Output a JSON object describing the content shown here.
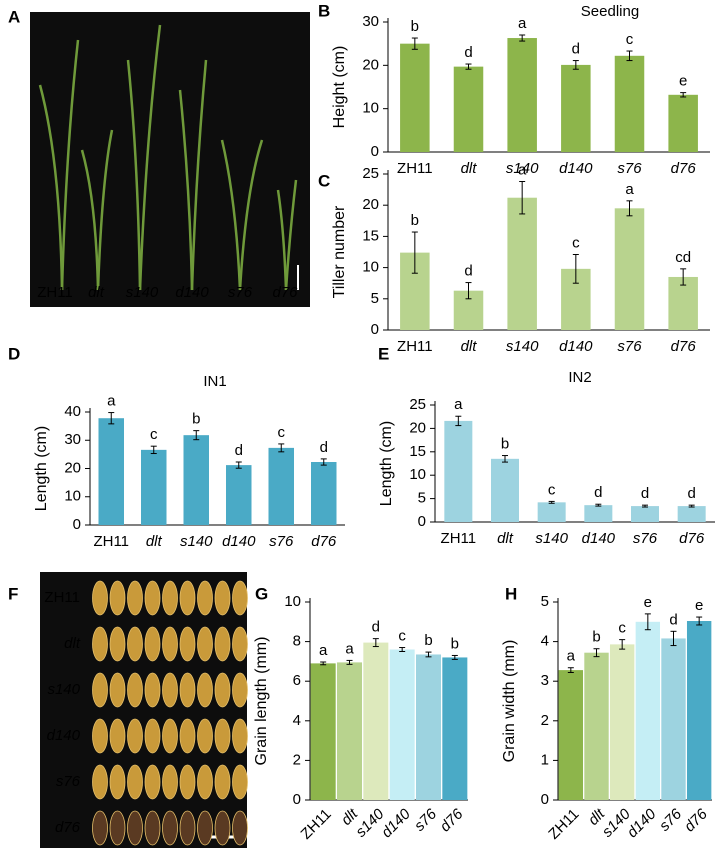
{
  "chart_data": [
    {
      "type": "bar",
      "panel": "B",
      "title": "Seedling",
      "y_label": "Height (cm)",
      "categories": [
        "ZH11",
        "dlt",
        "s140",
        "d140",
        "s76",
        "d76"
      ],
      "values": [
        25,
        19.7,
        26.3,
        20.1,
        22.2,
        13.2
      ],
      "errors": [
        1.3,
        0.6,
        0.7,
        1.0,
        1.1,
        0.5
      ],
      "annotations": [
        "b",
        "d",
        "a",
        "d",
        "c",
        "e"
      ],
      "color": "#8db54b",
      "ylim": [
        0,
        30
      ],
      "yticks": [
        0,
        10,
        20,
        30
      ]
    },
    {
      "type": "bar",
      "panel": "C",
      "y_label": "Tiller number",
      "categories": [
        "ZH11",
        "dlt",
        "s140",
        "d140",
        "s76",
        "d76"
      ],
      "values": [
        12.4,
        6.3,
        21.2,
        9.8,
        19.5,
        8.5
      ],
      "errors": [
        3.3,
        1.3,
        2.6,
        2.3,
        1.2,
        1.3
      ],
      "annotations": [
        "b",
        "d",
        "a",
        "c",
        "a",
        "cd"
      ],
      "color": "#b8d38e",
      "ylim": [
        0,
        25
      ],
      "yticks": [
        0,
        5,
        10,
        15,
        20,
        25
      ]
    },
    {
      "type": "bar",
      "panel": "D",
      "title": "IN1",
      "y_label": "Length (cm)",
      "categories": [
        "ZH11",
        "dlt",
        "s140",
        "d140",
        "s76",
        "d76"
      ],
      "values": [
        37.8,
        26.6,
        31.8,
        21.2,
        27.3,
        22.3
      ],
      "errors": [
        2.0,
        1.3,
        1.6,
        1.1,
        1.4,
        1.1
      ],
      "annotations": [
        "a",
        "c",
        "b",
        "d",
        "c",
        "d"
      ],
      "color": "#4aaac6",
      "ylim": [
        0,
        40
      ],
      "yticks": [
        0,
        10,
        20,
        30,
        40
      ]
    },
    {
      "type": "bar",
      "panel": "E",
      "title": "IN2",
      "y_label": "Length (cm)",
      "categories": [
        "ZH11",
        "dlt",
        "s140",
        "d140",
        "s76",
        "d76"
      ],
      "values": [
        21.6,
        13.5,
        4.2,
        3.6,
        3.4,
        3.4
      ],
      "errors": [
        1.0,
        0.7,
        0.2,
        0.2,
        0.2,
        0.2
      ],
      "annotations": [
        "a",
        "b",
        "c",
        "d",
        "d",
        "d"
      ],
      "color": "#9dd3e0",
      "ylim": [
        0,
        25
      ],
      "yticks": [
        0,
        5,
        10,
        15,
        20,
        25
      ]
    },
    {
      "type": "bar",
      "panel": "G",
      "y_label": "Grain length (mm)",
      "categories": [
        "ZH11",
        "dlt",
        "s140",
        "d140",
        "s76",
        "d76"
      ],
      "values": [
        6.9,
        6.95,
        7.95,
        7.6,
        7.35,
        7.2
      ],
      "errors": [
        0.07,
        0.1,
        0.2,
        0.1,
        0.12,
        0.1
      ],
      "annotations": [
        "a",
        "a",
        "d",
        "c",
        "b",
        "b"
      ],
      "colors": [
        "#8db54b",
        "#b8d38e",
        "#dde9bc",
        "#c5eef5",
        "#9dd3e0",
        "#4aaac6"
      ],
      "ylim": [
        0,
        10
      ],
      "yticks": [
        0,
        2,
        4,
        6,
        8,
        10
      ]
    },
    {
      "type": "bar",
      "panel": "H",
      "y_label": "Grain width (mm)",
      "categories": [
        "ZH11",
        "dlt",
        "s140",
        "d140",
        "s76",
        "d76"
      ],
      "values": [
        3.28,
        3.72,
        3.93,
        4.5,
        4.08,
        4.52
      ],
      "errors": [
        0.06,
        0.1,
        0.12,
        0.2,
        0.18,
        0.1
      ],
      "annotations": [
        "a",
        "b",
        "c",
        "e",
        "d",
        "e"
      ],
      "colors": [
        "#8db54b",
        "#b8d38e",
        "#dde9bc",
        "#c5eef5",
        "#9dd3e0",
        "#4aaac6"
      ],
      "ylim": [
        0,
        5
      ],
      "yticks": [
        0,
        1,
        2,
        3,
        4,
        5
      ]
    }
  ],
  "photos": [
    {
      "panel": "A",
      "captions": [
        "ZH11",
        "dlt",
        "s140",
        "d140",
        "s76",
        "d76"
      ]
    },
    {
      "panel": "F",
      "captions": [
        "ZH11",
        "dlt",
        "s140",
        "d140",
        "s76",
        "d76"
      ]
    }
  ]
}
